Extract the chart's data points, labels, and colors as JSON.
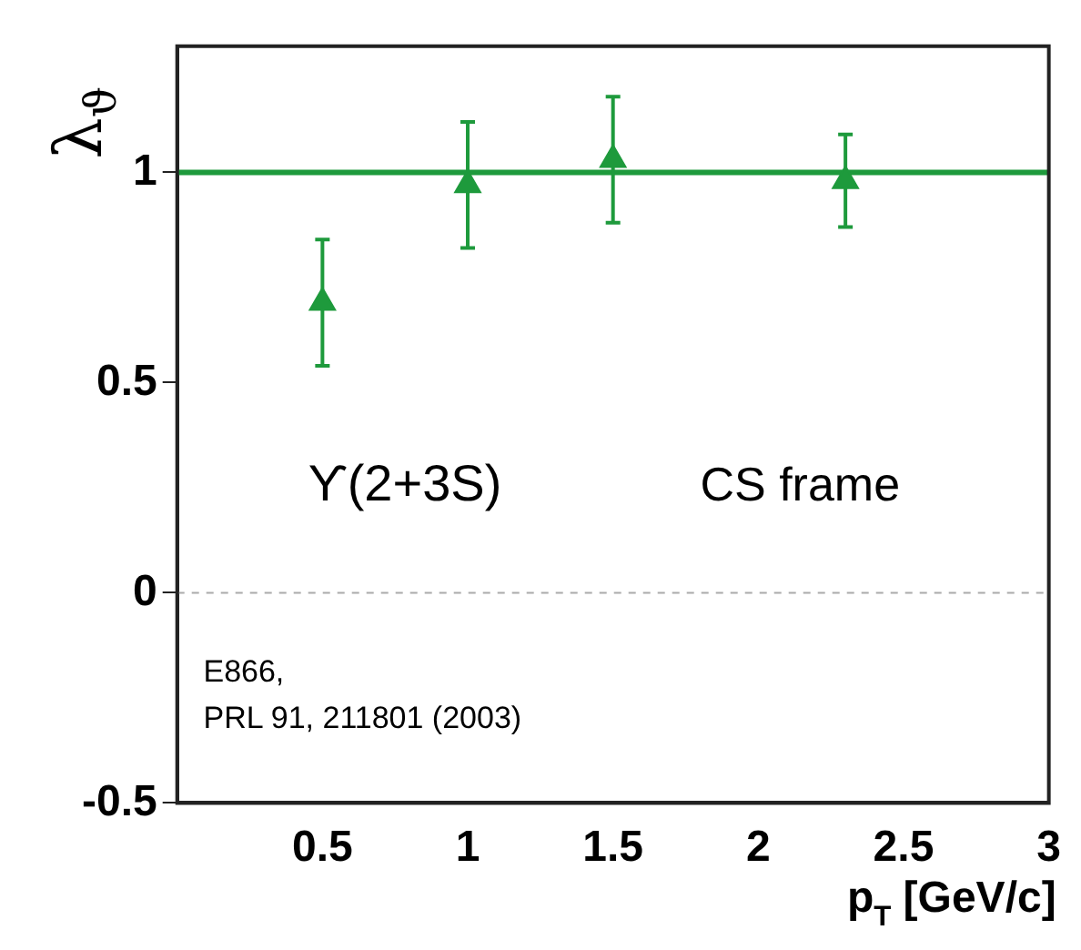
{
  "chart_data": {
    "type": "scatter",
    "ylabel": "λ$_{ϑ}$",
    "xlabel": "p$_{T}$ [GeV/c]",
    "x": [
      0.5,
      1,
      1.5,
      2.3
    ],
    "series": [
      {
        "color": "#1e9a3c",
        "values": [
          0.69,
          0.97,
          1.03,
          0.98
        ],
        "errors": [
          0.15,
          0.15,
          0.15,
          0.11
        ]
      }
    ],
    "xlim": [
      0,
      3
    ],
    "xticks": [
      0.5,
      1,
      1.5,
      2,
      2.5,
      3
    ],
    "ylim": [
      -0.5,
      1.3
    ],
    "yticks": [
      -0.5,
      0,
      0.5,
      1
    ],
    "marker": "triangle",
    "grid": false,
    "legend": false,
    "ref_lines": [
      {
        "axis": "y",
        "value": 1,
        "color": "#1e9a3c",
        "line_style": "solid"
      },
      {
        "axis": "y",
        "value": 0,
        "color": "#aaaaaa",
        "line_style": "dashed"
      }
    ],
    "annotations": [
      "ϒ(2+3S)",
      "CS frame",
      "E866,\nPRL 91, 211801 (2003)"
    ]
  }
}
